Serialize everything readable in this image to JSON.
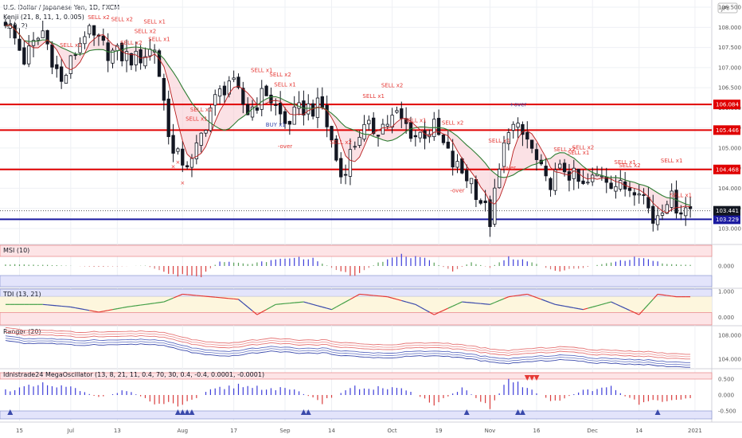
{
  "header": {
    "title": "U.S. Dollar / Japanese Yen, 1D, FXCM",
    "indicator1": "Kenji (21, 8, 11, 1, 0.005)",
    "indicator2": "(20, 2)",
    "currency": "JPY"
  },
  "chart_data": [
    {
      "type": "candlestick",
      "ylim": [
        102.9,
        108.6
      ],
      "yticks": [
        "108.500",
        "108.000",
        "107.500",
        "107.000",
        "106.500",
        "106.000",
        "105.500",
        "105.000",
        "104.500",
        "104.000",
        "103.500",
        "103.000"
      ],
      "ytick_values": [
        108.5,
        108.0,
        107.5,
        107.0,
        106.5,
        106.0,
        105.5,
        105.0,
        104.5,
        104.0,
        103.5,
        103.0
      ],
      "xticks": [
        "15",
        "Jul",
        "13",
        "Aug",
        "17",
        "Sep",
        "14",
        "Oct",
        "19",
        "Nov",
        "16",
        "Dec",
        "14",
        "2021"
      ],
      "xtick_index": [
        3,
        14,
        24,
        38,
        49,
        60,
        70,
        83,
        93,
        104,
        114,
        126,
        136,
        148
      ],
      "n_bars": 148,
      "hlines": [
        {
          "value": 106.084,
          "label": "106.084",
          "color": "#e00000"
        },
        {
          "value": 105.446,
          "label": "105.446",
          "color": "#e00000"
        },
        {
          "value": 104.468,
          "label": "104.468",
          "color": "#e00000"
        },
        {
          "value": 103.229,
          "label": "103.229",
          "color": "#1a1aa0"
        }
      ],
      "last_price": {
        "value": 103.441,
        "label": "103.441"
      },
      "keypoints": [
        [
          0,
          108.2
        ],
        [
          4,
          107.2
        ],
        [
          8,
          107.9
        ],
        [
          12,
          106.6
        ],
        [
          17,
          107.9
        ],
        [
          22,
          107.4
        ],
        [
          28,
          107.2
        ],
        [
          32,
          107.5
        ],
        [
          36,
          104.8
        ],
        [
          40,
          104.6
        ],
        [
          44,
          106.0
        ],
        [
          48,
          106.7
        ],
        [
          52,
          105.9
        ],
        [
          56,
          106.4
        ],
        [
          60,
          105.6
        ],
        [
          64,
          106.0
        ],
        [
          68,
          106.0
        ],
        [
          72,
          104.3
        ],
        [
          76,
          105.4
        ],
        [
          80,
          105.5
        ],
        [
          84,
          105.8
        ],
        [
          88,
          105.3
        ],
        [
          92,
          105.5
        ],
        [
          96,
          104.6
        ],
        [
          100,
          104.2
        ],
        [
          104,
          103.2
        ],
        [
          108,
          105.6
        ],
        [
          112,
          105.2
        ],
        [
          116,
          104.1
        ],
        [
          120,
          104.5
        ],
        [
          124,
          104.0
        ],
        [
          128,
          104.4
        ],
        [
          132,
          104.0
        ],
        [
          136,
          104.1
        ],
        [
          139,
          103.2
        ],
        [
          142,
          103.8
        ],
        [
          145,
          103.5
        ]
      ],
      "signals": [
        {
          "i": 14,
          "text": "SELL x1",
          "above": true
        },
        {
          "i": 20,
          "text": "SELL x2",
          "above": true
        },
        {
          "i": 25,
          "text": "SELL x2",
          "above": true
        },
        {
          "i": 27,
          "text": "SELL x2",
          "above": true
        },
        {
          "i": 30,
          "text": "SELL x2",
          "above": true
        },
        {
          "i": 32,
          "text": "SELL x1",
          "above": true
        },
        {
          "i": 33,
          "text": "SELL x1",
          "above": true
        },
        {
          "i": 41,
          "text": "SELL x1",
          "above": true
        },
        {
          "i": 42,
          "text": "SELL x1",
          "above": true
        },
        {
          "i": 55,
          "text": "SELL x1",
          "above": true
        },
        {
          "i": 59,
          "text": "SELL x2",
          "above": true
        },
        {
          "i": 60,
          "text": "SELL x1",
          "above": true
        },
        {
          "i": 72,
          "text": "SELL x2",
          "above": true
        },
        {
          "i": 79,
          "text": "SELL x1",
          "above": true
        },
        {
          "i": 83,
          "text": "SELL x2",
          "above": true
        },
        {
          "i": 88,
          "text": "SELL x1",
          "above": true
        },
        {
          "i": 96,
          "text": "SELL x2",
          "above": true
        },
        {
          "i": 106,
          "text": "SELL x1",
          "above": true
        },
        {
          "i": 120,
          "text": "SELL x2",
          "above": true
        },
        {
          "i": 123,
          "text": "SELL x1",
          "above": true
        },
        {
          "i": 124,
          "text": "SELL x2",
          "above": true
        },
        {
          "i": 133,
          "text": "SELL x1",
          "above": true
        },
        {
          "i": 134,
          "text": "SELL x2",
          "above": true
        },
        {
          "i": 143,
          "text": "SELL x1",
          "above": true
        },
        {
          "i": 145,
          "text": "SELL x1",
          "above": true
        }
      ],
      "buy_signals": [
        {
          "i": 58,
          "text": "BUY x1"
        }
      ],
      "over_labels": [
        {
          "i": 60,
          "text": "-over",
          "color": "#e53935"
        },
        {
          "i": 97,
          "text": "-over",
          "color": "#e53935"
        },
        {
          "i": 108,
          "text": "-over",
          "color": "#e53935"
        },
        {
          "i": 110,
          "text": "+over",
          "color": "#3949ab"
        }
      ],
      "x_marks": [
        36,
        37,
        38
      ]
    },
    {
      "type": "histogram",
      "title": "MSI (10)",
      "ylim": [
        -1,
        1
      ],
      "yticks": [
        "0.000"
      ],
      "keypoints": [
        [
          0,
          0.1
        ],
        [
          10,
          0.05
        ],
        [
          20,
          -0.05
        ],
        [
          30,
          0.02
        ],
        [
          36,
          -0.5
        ],
        [
          42,
          -0.6
        ],
        [
          46,
          0.3
        ],
        [
          52,
          0.1
        ],
        [
          58,
          0.35
        ],
        [
          62,
          0.5
        ],
        [
          66,
          0.4
        ],
        [
          70,
          -0.1
        ],
        [
          75,
          -0.6
        ],
        [
          80,
          0.2
        ],
        [
          85,
          0.6
        ],
        [
          90,
          0.4
        ],
        [
          96,
          -0.3
        ],
        [
          100,
          0.2
        ],
        [
          104,
          -0.1
        ],
        [
          108,
          0.5
        ],
        [
          112,
          0.3
        ],
        [
          118,
          -0.3
        ],
        [
          124,
          -0.1
        ],
        [
          130,
          0.2
        ],
        [
          136,
          0.5
        ],
        [
          142,
          0.1
        ],
        [
          148,
          0.05
        ]
      ]
    },
    {
      "type": "line",
      "title": "TDI (13, 21)",
      "ylim": [
        -0.3,
        1.1
      ],
      "yticks": [
        "1.000",
        "0.000"
      ],
      "keypoints": [
        [
          0,
          0.5
        ],
        [
          8,
          0.5
        ],
        [
          14,
          0.4
        ],
        [
          20,
          0.2
        ],
        [
          26,
          0.4
        ],
        [
          34,
          0.6
        ],
        [
          38,
          0.9
        ],
        [
          44,
          0.8
        ],
        [
          50,
          0.7
        ],
        [
          54,
          0.1
        ],
        [
          58,
          0.5
        ],
        [
          64,
          0.6
        ],
        [
          70,
          0.3
        ],
        [
          76,
          0.9
        ],
        [
          82,
          0.8
        ],
        [
          88,
          0.5
        ],
        [
          92,
          0.1
        ],
        [
          98,
          0.6
        ],
        [
          104,
          0.5
        ],
        [
          108,
          0.8
        ],
        [
          112,
          0.9
        ],
        [
          118,
          0.5
        ],
        [
          124,
          0.3
        ],
        [
          130,
          0.6
        ],
        [
          136,
          0.1
        ],
        [
          140,
          0.9
        ],
        [
          144,
          0.8
        ],
        [
          148,
          0.8
        ]
      ]
    },
    {
      "type": "bands",
      "title": "Ranger (20)",
      "ylim": [
        102.5,
        109.5
      ],
      "yticks": [
        "108.000",
        "104.000"
      ],
      "ytick_values": [
        108.0,
        104.0
      ]
    },
    {
      "type": "histogram",
      "title": "Idnistrade24 MegaOscillator (13, 8, 21, 11, 0.4, 70, 30, 0.4, -0.4, 0.0001, -0.0001)",
      "ylim": [
        -0.8,
        0.8
      ],
      "yticks": [
        "0.500",
        "0.000",
        "-0.500"
      ],
      "ytick_values": [
        0.5,
        0.0,
        -0.5
      ],
      "keypoints": [
        [
          0,
          0.2
        ],
        [
          8,
          0.4
        ],
        [
          14,
          0.3
        ],
        [
          20,
          -0.1
        ],
        [
          26,
          0.2
        ],
        [
          32,
          -0.3
        ],
        [
          38,
          -0.4
        ],
        [
          44,
          0.2
        ],
        [
          50,
          0.4
        ],
        [
          56,
          0.3
        ],
        [
          62,
          0.2
        ],
        [
          68,
          -0.3
        ],
        [
          74,
          0.3
        ],
        [
          80,
          0.3
        ],
        [
          86,
          0.2
        ],
        [
          92,
          -0.4
        ],
        [
          98,
          0.3
        ],
        [
          104,
          -0.5
        ],
        [
          108,
          0.6
        ],
        [
          112,
          0.3
        ],
        [
          118,
          -0.3
        ],
        [
          124,
          0.2
        ],
        [
          130,
          0.3
        ],
        [
          136,
          -0.4
        ],
        [
          142,
          -0.2
        ],
        [
          148,
          -0.1
        ]
      ],
      "up_triangles": [
        1,
        37,
        38,
        39,
        40,
        64,
        65,
        99,
        110,
        111,
        140
      ],
      "down_triangles": [
        112,
        113,
        114
      ]
    }
  ]
}
